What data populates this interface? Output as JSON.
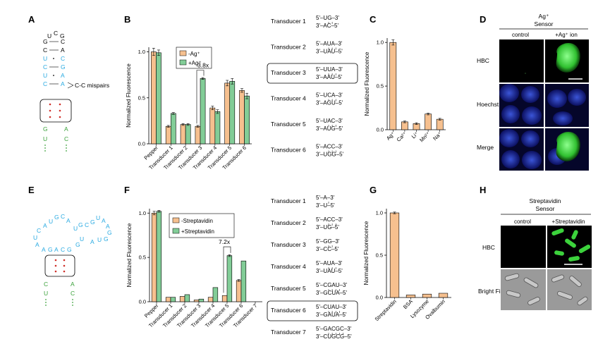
{
  "panels": {
    "A": "A",
    "B": "B",
    "C": "C",
    "D": "D",
    "E": "E",
    "F": "F",
    "G": "G",
    "H": "H"
  },
  "colors": {
    "minus": "#f6c08f",
    "plus": "#82cd97",
    "cyan": "#27a9e1",
    "green": "#3aa13a",
    "red": "#d0302a"
  },
  "panelA": {
    "top": [
      "U",
      "C",
      "G"
    ],
    "stem_left": [
      "G",
      "C",
      "U",
      "C",
      "U",
      "C"
    ],
    "stem_right": [
      "C",
      "A",
      "C",
      "G",
      "A",
      "A"
    ],
    "bottom_left": [
      "G",
      "U"
    ],
    "bottom_right": [
      "A",
      "C"
    ],
    "callout": "C-C mispairs"
  },
  "panelE": {
    "loop_left": [
      "A",
      "U",
      "G",
      "C",
      "A"
    ],
    "loop_bottom": [
      "C",
      "U",
      "A",
      "A",
      "G",
      "A",
      "C",
      "G"
    ],
    "loop_right": [
      "U",
      "G",
      "C",
      "G",
      "U",
      "A",
      "A",
      "G",
      "G",
      "G",
      "U",
      "A",
      "U"
    ],
    "bottom_left": [
      "C",
      "U"
    ],
    "bottom_right": [
      "A",
      "C"
    ]
  },
  "panelB": {
    "ylabel": "Normalized Fluorescence",
    "legend": [
      "-Ag⁺",
      "+Ag⁺"
    ],
    "annotation": "3.8x",
    "chart_data": {
      "type": "bar",
      "categories": [
        "Pepper",
        "Transducer 1",
        "Transducer 2",
        "Transducer 3",
        "Transducer 4",
        "Transducer 5",
        "Transducer 6"
      ],
      "series": [
        {
          "name": "-Ag⁺",
          "values": [
            1.0,
            0.19,
            0.21,
            0.19,
            0.39,
            0.66,
            0.58
          ],
          "err": [
            0.04,
            0.01,
            0.01,
            0.01,
            0.02,
            0.03,
            0.02
          ]
        },
        {
          "name": "+Ag⁺",
          "values": [
            0.99,
            0.33,
            0.21,
            0.71,
            0.35,
            0.68,
            0.52
          ],
          "err": [
            0.03,
            0.01,
            0.01,
            0.01,
            0.02,
            0.03,
            0.03
          ]
        }
      ],
      "ylim": [
        0,
        1.05
      ],
      "yticks": [
        "0.0",
        "0.5",
        "1.0"
      ]
    },
    "transducers": [
      {
        "name": "Transducer 1",
        "top": "5'–UG–3'",
        "bottom": "3'–AC–5'"
      },
      {
        "name": "Transducer 2",
        "top": "5'–AUA–3'",
        "bottom": "3'–UAU–5'"
      },
      {
        "name": "Transducer 3",
        "top": "5'–UUA–3'",
        "bottom": "3'–AAU–5'"
      },
      {
        "name": "Transducer 4",
        "top": "5'–UCA–3'",
        "bottom": "3'–AGU–5'"
      },
      {
        "name": "Transducer 5",
        "top": "5'–UAC–3'",
        "bottom": "3'–AUG–5'"
      },
      {
        "name": "Transducer 6",
        "top": "5'–ACC–3'",
        "bottom": "3'–UGG–5'"
      }
    ]
  },
  "panelC": {
    "ylabel": "Normalized Fluorescence",
    "chart_data": {
      "type": "bar",
      "categories": [
        "Ag⁺",
        "Ca²⁺",
        "Li⁺",
        "Mn²⁺",
        "Na⁺"
      ],
      "values": [
        1.0,
        0.09,
        0.07,
        0.18,
        0.12
      ],
      "err": [
        0.03,
        0.01,
        0.01,
        0.01,
        0.01
      ],
      "ylim": [
        0,
        1.05
      ],
      "yticks": [
        "0.0",
        "0.5",
        "1.0"
      ]
    }
  },
  "panelD": {
    "title1": "Ag⁺",
    "title2": "Sensor",
    "cols": [
      "control",
      "+Ag⁺ ion"
    ],
    "rows": [
      "HBC",
      "Hoechst",
      "Merge"
    ]
  },
  "panelF": {
    "ylabel": "Normalized Fluorescence",
    "legend": [
      "-Streptavidin",
      "+Streptavidin"
    ],
    "annotation": "7.2x",
    "chart_data": {
      "type": "bar",
      "categories": [
        "Pepper",
        "Transducer 1",
        "Transducer 2",
        "Transducer 3",
        "Transducer 4",
        "Transducer 5",
        "Transducer 6",
        "Transducer 7"
      ],
      "series": [
        {
          "name": "-Streptavidin",
          "values": [
            1.0,
            0.05,
            0.06,
            0.02,
            0.05,
            0.07,
            0.24,
            0.0
          ],
          "err": [
            0.02,
            0.0,
            0.0,
            0.0,
            0.0,
            0.0,
            0.01,
            0.0
          ]
        },
        {
          "name": "+Streptavidin",
          "values": [
            1.02,
            0.05,
            0.08,
            0.03,
            0.16,
            0.52,
            0.46,
            0.0
          ],
          "err": [
            0.01,
            0.0,
            0.0,
            0.0,
            0.0,
            0.01,
            0.0,
            0.0
          ]
        }
      ],
      "ylim": [
        0,
        1.05
      ],
      "yticks": [
        "0.0",
        "0.5",
        "1.0"
      ]
    },
    "transducers": [
      {
        "name": "Transducer 1",
        "top": "5'–A–3'",
        "bottom": "3'–U–5'"
      },
      {
        "name": "Transducer 2",
        "top": "5'–ACC–3'",
        "bottom": "3'–UG–5'"
      },
      {
        "name": "Transducer 3",
        "top": "5'–GG–3'",
        "bottom": "3'–CC–5'"
      },
      {
        "name": "Transducer 4",
        "top": "5'–AUA–3'",
        "bottom": "3'–UAU–5'"
      },
      {
        "name": "Transducer 5",
        "top": "5'–CGAU–3'",
        "bottom": "3'–GCUA–5'"
      },
      {
        "name": "Transducer 6",
        "top": "5'–CUAU–3'",
        "bottom": "3'–GAUA–5'"
      },
      {
        "name": "Transducer 7",
        "top": "5'–GACGC–3'",
        "bottom": "3'–CUGCG–5'"
      }
    ]
  },
  "panelG": {
    "ylabel": "Normalized Fluorescence",
    "chart_data": {
      "type": "bar",
      "categories": [
        "Streptavidin",
        "BSA",
        "Lysozyme",
        "Ovalbumin"
      ],
      "values": [
        1.0,
        0.03,
        0.04,
        0.05
      ],
      "err": [
        0.01,
        0.0,
        0.0,
        0.0
      ],
      "ylim": [
        0,
        1.05
      ],
      "yticks": [
        "0.0",
        "0.5",
        "1.0"
      ]
    }
  },
  "panelH": {
    "title1": "Streptavidin",
    "title2": "Sensor",
    "cols": [
      "control",
      "+Streptavidin"
    ],
    "rows": [
      "HBC",
      "Bright Field"
    ]
  }
}
